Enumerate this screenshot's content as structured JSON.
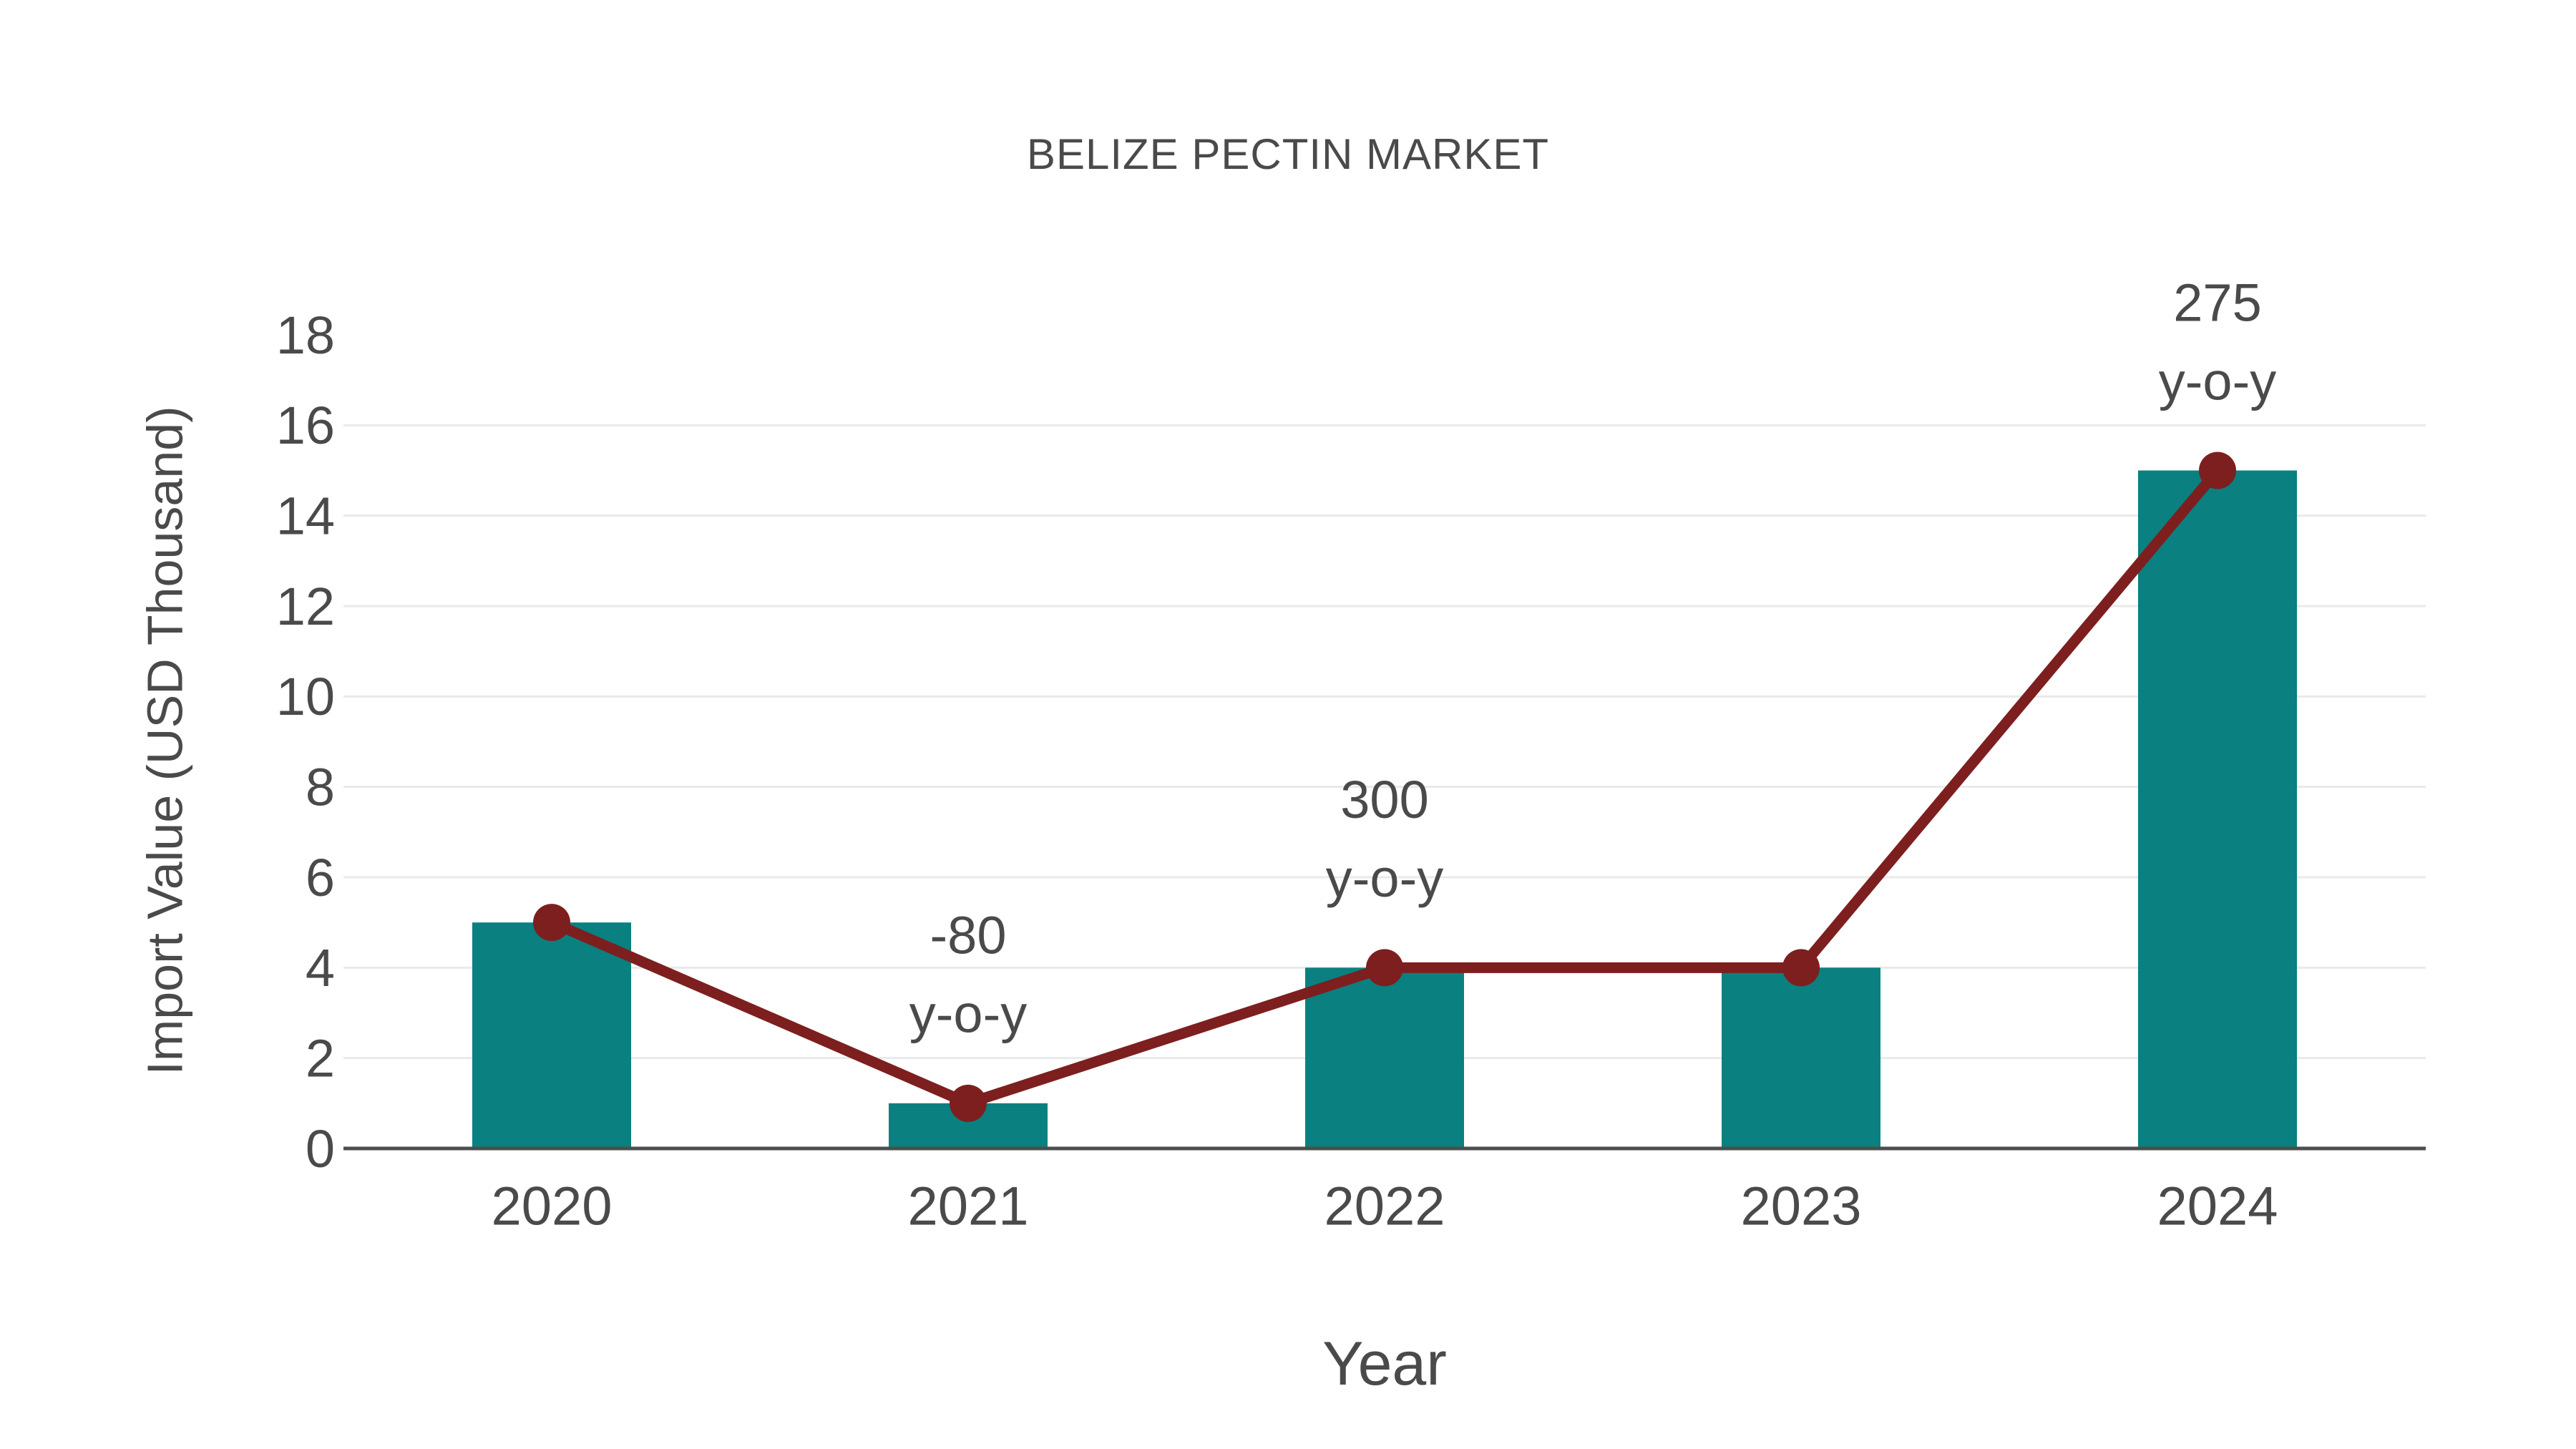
{
  "title": "BELIZE PECTIN MARKET",
  "colors": {
    "background": "#ffffff",
    "bar": "#0a8080",
    "line": "#7d1f1f",
    "text": "#4a4a4a",
    "grid": "#eaeaea",
    "axis": "#4d4d4d"
  },
  "chart_data": {
    "type": "bar",
    "title": "BELIZE PECTIN MARKET",
    "xlabel": "Year",
    "ylabel": "Import Value (USD Thousand)",
    "categories": [
      "2020",
      "2021",
      "2022",
      "2023",
      "2024"
    ],
    "series": [
      {
        "name": "Import Value bars",
        "type": "bar",
        "values": [
          5,
          1,
          4,
          4,
          15
        ]
      },
      {
        "name": "Import Value trend line",
        "type": "line",
        "values": [
          5,
          1,
          4,
          4,
          15
        ]
      }
    ],
    "annotations": [
      {
        "category": "2021",
        "lines": [
          "-80",
          "y-o-y"
        ]
      },
      {
        "category": "2022",
        "lines": [
          "300",
          "y-o-y"
        ]
      },
      {
        "category": "2024",
        "lines": [
          "275",
          "y-o-y"
        ]
      }
    ],
    "ylim": [
      0,
      18
    ],
    "yticks": [
      0,
      2,
      4,
      6,
      8,
      10,
      12,
      14,
      16,
      18
    ],
    "gridlines_at": [
      2,
      4,
      6,
      8,
      10,
      12,
      14,
      16
    ],
    "grid": true,
    "legend_position": "none"
  }
}
